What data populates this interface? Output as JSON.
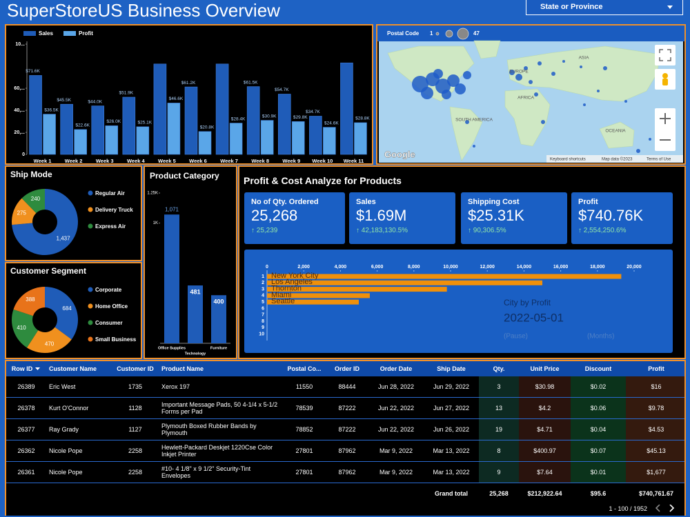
{
  "header": {
    "title": "SuperStoreUS Business Overview",
    "filter": "State or Province"
  },
  "chart_data": [
    {
      "type": "bar",
      "categories": [
        "Week 1",
        "Week 2",
        "Week 3",
        "Week 4",
        "Week 5",
        "Week 6",
        "Week 7",
        "Week 8",
        "Week 9",
        "Week 10",
        "Week 11"
      ],
      "series": [
        {
          "name": "Sales",
          "color": "#1f5cb8",
          "values": [
            71600,
            45500,
            44000,
            51900,
            82000,
            61200,
            82000,
            61500,
            54700,
            34700,
            83000
          ],
          "value_labels": [
            "$71.6K",
            "$45.5K",
            "$44.0K",
            "$51.9K",
            null,
            "$61.2K",
            null,
            "$61.5K",
            "$54.7K",
            "$34.7K",
            null
          ]
        },
        {
          "name": "Profit",
          "color": "#5aa6e8",
          "values": [
            36500,
            22600,
            26000,
            25100,
            46600,
            20800,
            28400,
            30900,
            29800,
            24600,
            28800
          ],
          "value_labels": [
            "$36.5K",
            "$22.6K",
            "$26.0K",
            "$25.1K",
            "$46.6K",
            "$20.8K",
            "$28.4K",
            "$30.9K",
            "$29.8K",
            "$24.6K",
            "$28.8K"
          ]
        }
      ],
      "ylim": [
        0,
        100000
      ],
      "yticks": [
        0,
        {
          "value": 20000,
          "label": "20,..."
        },
        {
          "value": 40000,
          "label": "40,..."
        },
        {
          "value": 60000,
          "label": "60,..."
        },
        {
          "value": 100000,
          "label": "10..."
        }
      ]
    },
    {
      "type": "pie",
      "title": "Ship Mode",
      "categories": [
        "Regular Air",
        "Delivery Truck",
        "Express Air"
      ],
      "values": [
        1437,
        275,
        240
      ],
      "value_labels": [
        "1,437",
        "275",
        "240"
      ],
      "colors": [
        "#1f5cb8",
        "#f0901e",
        "#2e8b3e"
      ]
    },
    {
      "type": "pie",
      "title": "Customer Segment",
      "categories": [
        "Corporate",
        "Home Office",
        "Consumer",
        "Small Business"
      ],
      "values": [
        684,
        470,
        410,
        388
      ],
      "colors": [
        "#1f5cb8",
        "#f0901e",
        "#2e8b3e",
        "#e8731a"
      ]
    },
    {
      "type": "bar",
      "title": "Product Category",
      "categories": [
        "Office Supplies",
        "Technology",
        "Furniture"
      ],
      "values": [
        1071,
        481,
        400
      ],
      "value_labels": [
        "1,071",
        "481",
        "400"
      ],
      "color": "#1f5cb8",
      "ylim": [
        0,
        1250
      ],
      "yticks": [
        {
          "value": 1000,
          "label": "1K"
        },
        {
          "value": 1250,
          "label": "1.25K"
        }
      ]
    },
    {
      "type": "hbar",
      "title": "City by Profit",
      "categories": [
        "1",
        "2",
        "3",
        "4",
        "5",
        "6",
        "7",
        "8",
        "9",
        "10"
      ],
      "labels": [
        "New York City",
        "Los Angeles",
        "Thornton",
        "Miami",
        "Seattle",
        null,
        null,
        null,
        null,
        null
      ],
      "values": [
        19300,
        15000,
        9800,
        5600,
        5000,
        null,
        null,
        null,
        null,
        null
      ],
      "color": "#f0900a",
      "xlim": [
        0,
        20000
      ],
      "xticks": [
        0,
        {
          "value": 2000,
          "label": "2,000"
        },
        {
          "value": 4000,
          "label": "4,000"
        },
        {
          "value": 6000,
          "label": "6,000"
        },
        {
          "value": 8000,
          "label": "8,000"
        },
        {
          "value": 10000,
          "label": "10,000"
        },
        {
          "value": 12000,
          "label": "12,000"
        },
        {
          "value": 14000,
          "label": "14,000"
        },
        {
          "value": 16000,
          "label": "16,000"
        },
        {
          "value": 18000,
          "label": "18,000"
        },
        {
          "value": 20000,
          "label": "20,000"
        }
      ],
      "date": "2022-05-01",
      "controls": [
        "(Pause)",
        "(Months)"
      ]
    }
  ],
  "profit_cost": {
    "title": "Profit & Cost Analyze for Products",
    "kpis": [
      {
        "label": "No of Qty. Ordered",
        "value": "25,268",
        "change": "↑ 25,239"
      },
      {
        "label": "Sales",
        "value": "$1.69M",
        "change": "↑ 42,183,130.5%"
      },
      {
        "label": "Shipping Cost",
        "value": "$25.31K",
        "change": "↑ 90,306.5%"
      },
      {
        "label": "Profit",
        "value": "$740.76K",
        "change": "↑ 2,554,250.6%"
      }
    ]
  },
  "map": {
    "legend_title": "Postal Code",
    "legend_min": "1",
    "legend_max": "47",
    "labels": [
      "ASIA",
      "EUROPE",
      "AFRICA",
      "SOUTH AMERICA",
      "OCEANIA"
    ],
    "brand": "Google",
    "footer": [
      "Keyboard shortcuts",
      "Map data ©2023",
      "Terms of Use"
    ]
  },
  "table": {
    "columns": [
      "Row ID",
      "Customer Name",
      "Customer ID",
      "Product Name",
      "Postal Co...",
      "Order ID",
      "Order Date",
      "Ship Date",
      "Qty.",
      "Unit Price",
      "Discount",
      "Profit"
    ],
    "rows": [
      [
        "26389",
        "Eric West",
        "1735",
        "Xerox 197",
        "11550",
        "88444",
        "Jun 28, 2022",
        "Jun 29, 2022",
        "3",
        "$30.98",
        "$0.02",
        "$16"
      ],
      [
        "26378",
        "Kurt O'Connor",
        "1128",
        "Important Message Pads, 50 4-1/4 x 5-1/2 Forms per Pad",
        "78539",
        "87222",
        "Jun 22, 2022",
        "Jun 27, 2022",
        "13",
        "$4.2",
        "$0.06",
        "$9.78"
      ],
      [
        "26377",
        "Ray Grady",
        "1127",
        "Plymouth Boxed Rubber Bands by Plymouth",
        "78852",
        "87222",
        "Jun 22, 2022",
        "Jun 26, 2022",
        "19",
        "$4.71",
        "$0.04",
        "$4.53"
      ],
      [
        "26362",
        "Nicole Pope",
        "2258",
        "Hewlett-Packard Deskjet 1220Cse Color Inkjet Printer",
        "27801",
        "87962",
        "Mar 9, 2022",
        "Mar 13, 2022",
        "8",
        "$400.97",
        "$0.07",
        "$45.13"
      ],
      [
        "26361",
        "Nicole Pope",
        "2258",
        "#10- 4 1/8\" x 9 1/2\" Security-Tint Envelopes",
        "27801",
        "87962",
        "Mar 9, 2022",
        "Mar 13, 2022",
        "9",
        "$7.64",
        "$0.01",
        "$1,677"
      ]
    ],
    "totals": {
      "label": "Grand total",
      "values": [
        "25,268",
        "$212,922.64",
        "$95.6",
        "$740,761.67"
      ]
    },
    "pagination": "1 - 100 / 1952"
  }
}
